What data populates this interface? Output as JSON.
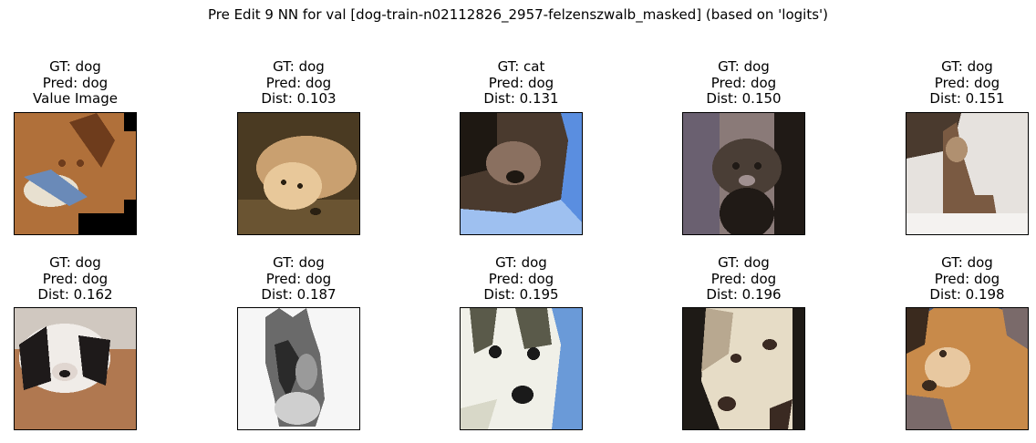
{
  "suptitle": "Pre Edit 9 NN for val [dog-train-n02112826_2957-felzenszwalb_masked] (based on 'logits')",
  "panels": [
    {
      "gt": "GT: dog",
      "pred": "Pred: dog",
      "extra": "Value Image",
      "subject": "masked corgi with toy",
      "colors": {
        "bg": "#000000",
        "main": "#b0703a",
        "dark": "#6e3c1c",
        "light": "#e8e0d0",
        "accent": "#6a8ab8"
      }
    },
    {
      "gt": "GT: dog",
      "pred": "Pred: dog",
      "extra": "Dist: 0.103",
      "subject": "fluffy puppy lying",
      "colors": {
        "bg": "#4a3a22",
        "main": "#c9a070",
        "dark": "#2a2012",
        "light": "#e8c89a",
        "accent": "#6a5432"
      }
    },
    {
      "gt": "GT: cat",
      "pred": "Pred: dog",
      "extra": "Dist: 0.131",
      "subject": "dark fluffy animal on blue",
      "colors": {
        "bg": "#5a8ee0",
        "main": "#4a3a2e",
        "dark": "#1e1812",
        "light": "#8a7060",
        "accent": "#9ec0f0"
      }
    },
    {
      "gt": "GT: dog",
      "pred": "Pred: dog",
      "extra": "Dist: 0.150",
      "subject": "dark puppy",
      "colors": {
        "bg": "#8a7a78",
        "main": "#4a3e36",
        "dark": "#201a16",
        "light": "#a09090",
        "accent": "#6a6070"
      }
    },
    {
      "gt": "GT: dog",
      "pred": "Pred: dog",
      "extra": "Dist: 0.151",
      "subject": "small dog in snow",
      "colors": {
        "bg": "#e6e2de",
        "main": "#7a5a42",
        "dark": "#4a3a2e",
        "light": "#f4f2f0",
        "accent": "#b09070"
      }
    },
    {
      "gt": "GT: dog",
      "pred": "Pred: dog",
      "extra": "Dist: 0.162",
      "subject": "puppy on wooden floor",
      "colors": {
        "bg": "#b07850",
        "main": "#f0ece8",
        "dark": "#1e1a1a",
        "light": "#e0d6d0",
        "accent": "#8a5a3a"
      }
    },
    {
      "gt": "GT: dog",
      "pred": "Pred: dog",
      "extra": "Dist: 0.187",
      "subject": "grey dog on white",
      "colors": {
        "bg": "#f6f6f6",
        "main": "#6a6a6a",
        "dark": "#2a2a2a",
        "light": "#cfcfcf",
        "accent": "#9a9a9a"
      }
    },
    {
      "gt": "GT: dog",
      "pred": "Pred: dog",
      "extra": "Dist: 0.195",
      "subject": "husky face on blue",
      "colors": {
        "bg": "#6a9ad8",
        "main": "#d8d8c8",
        "dark": "#1a1a1a",
        "light": "#f0f0e8",
        "accent": "#5a5a4a"
      }
    },
    {
      "gt": "GT: dog",
      "pred": "Pred: dog",
      "extra": "Dist: 0.196",
      "subject": "cream dog face",
      "colors": {
        "bg": "#1e1a16",
        "main": "#e6dcc6",
        "dark": "#3a2a22",
        "light": "#f4eedc",
        "accent": "#b8a890"
      }
    },
    {
      "gt": "GT: dog",
      "pred": "Pred: dog",
      "extra": "Dist: 0.198",
      "subject": "orange corgi",
      "colors": {
        "bg": "#4a5a7a",
        "main": "#c88a4a",
        "dark": "#3a2a1e",
        "light": "#e8c8a0",
        "accent": "#7a6a6a"
      }
    }
  ]
}
